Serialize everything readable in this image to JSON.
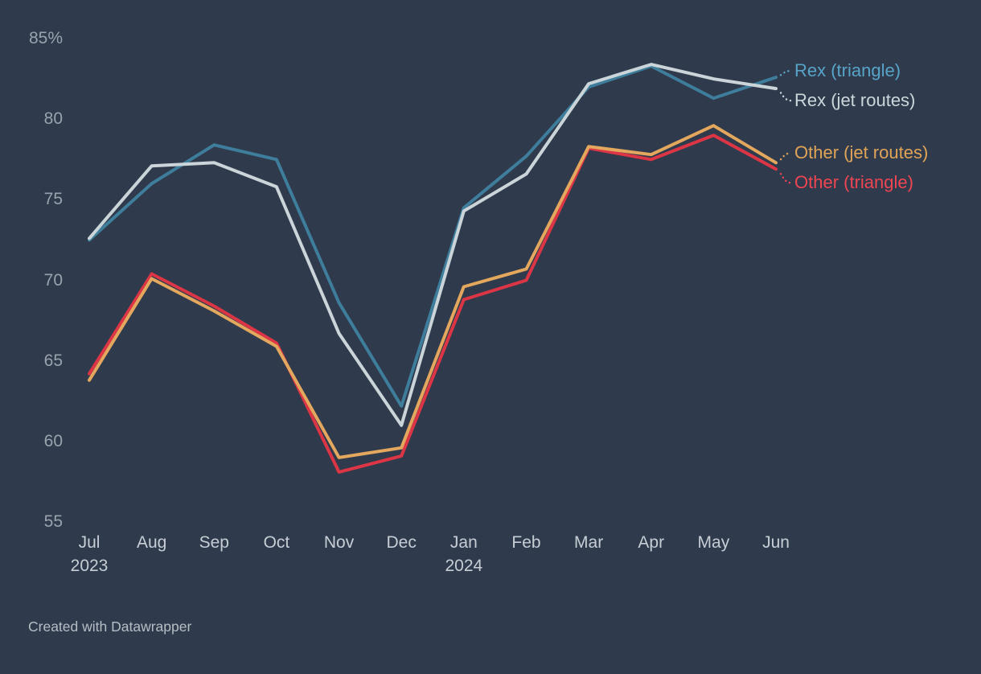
{
  "background_color": "#2f3b4c",
  "footer": {
    "text": "Created with Datawrapper"
  },
  "chart_data": {
    "type": "line",
    "title": "",
    "xlabel": "",
    "ylabel": "",
    "unit": "%",
    "ylim": [
      55,
      85
    ],
    "grid": false,
    "legend_position": "right-of-line-ends",
    "x_categories": [
      "Jul",
      "Aug",
      "Sep",
      "Oct",
      "Nov",
      "Dec",
      "Jan",
      "Feb",
      "Mar",
      "Apr",
      "May",
      "Jun"
    ],
    "x_year_labels": [
      {
        "index": 0,
        "label": "2023"
      },
      {
        "index": 6,
        "label": "2024"
      }
    ],
    "y_axis": {
      "ticks": [
        {
          "label": "85%",
          "value": 85
        },
        {
          "label": "80",
          "value": 80
        },
        {
          "label": "75",
          "value": 75
        },
        {
          "label": "70",
          "value": 70
        },
        {
          "label": "65",
          "value": 65
        },
        {
          "label": "60",
          "value": 60
        },
        {
          "label": "55",
          "value": 55
        }
      ]
    },
    "series": [
      {
        "name": "Rex (triangle)",
        "color": "#3e7d9b",
        "label_color": "#58a4c9",
        "values": [
          72.5,
          76.0,
          78.4,
          77.5,
          68.6,
          62.2,
          74.5,
          77.7,
          82.0,
          83.3,
          81.3,
          82.6
        ]
      },
      {
        "name": "Rex (jet routes)",
        "color": "#cbd5d9",
        "label_color": "#cdd7db",
        "values": [
          72.6,
          77.1,
          77.3,
          75.8,
          66.7,
          61.0,
          74.3,
          76.6,
          82.2,
          83.4,
          82.5,
          81.9
        ]
      },
      {
        "name": "Other (jet routes)",
        "color": "#e3a75d",
        "label_color": "#e1a457",
        "values": [
          63.8,
          70.1,
          68.1,
          65.9,
          59.0,
          59.6,
          69.6,
          70.7,
          78.3,
          77.8,
          79.6,
          77.3
        ]
      },
      {
        "name": "Other (triangle)",
        "color": "#dc3545",
        "label_color": "#ef4552",
        "values": [
          64.2,
          70.4,
          68.4,
          66.1,
          58.1,
          59.1,
          68.8,
          70.0,
          78.2,
          77.5,
          79.0,
          76.9
        ]
      }
    ]
  }
}
